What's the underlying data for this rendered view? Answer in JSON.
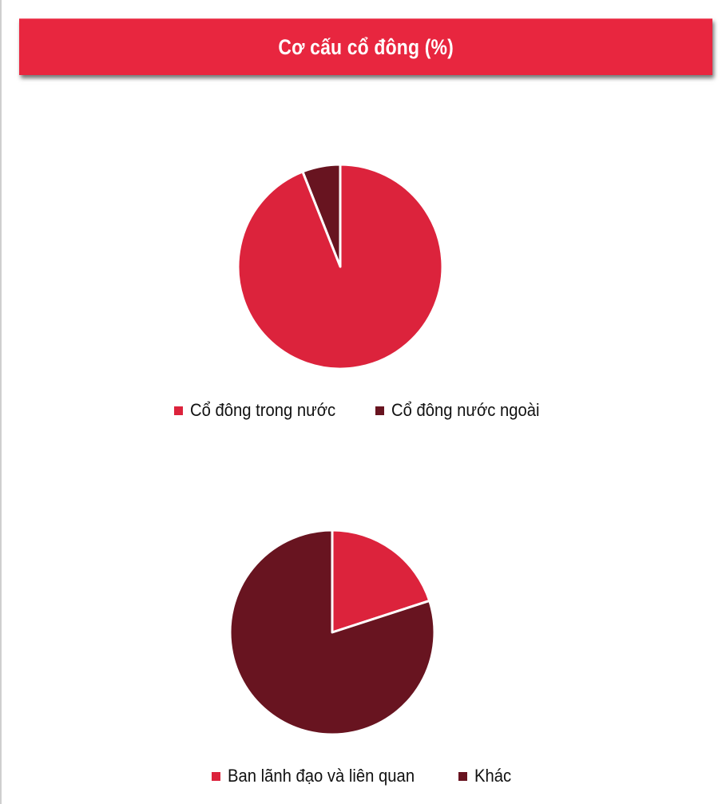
{
  "header": {
    "title": "Cơ cấu cổ đông (%)"
  },
  "chart_data": [
    {
      "type": "pie",
      "categories": [
        "Cổ đông trong nước",
        "Cổ đông nước ngoài"
      ],
      "values": [
        94,
        6
      ],
      "colors": [
        "#dc233c",
        "#681420"
      ],
      "legend": "bottom"
    },
    {
      "type": "pie",
      "categories": [
        "Ban lãnh đạo và liên quan",
        "Khác"
      ],
      "values": [
        20,
        80
      ],
      "colors": [
        "#dc233c",
        "#681420"
      ],
      "legend": "bottom"
    }
  ]
}
